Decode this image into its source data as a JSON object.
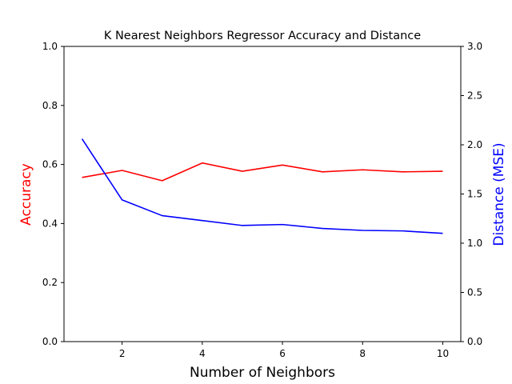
{
  "chart_data": {
    "type": "line",
    "title": "K Nearest Neighbors Regressor Accuracy and Distance",
    "xlabel": "Number of Neighbors",
    "xlim": [
      0.55,
      10.45
    ],
    "xticks": [
      "2",
      "4",
      "6",
      "8",
      "10"
    ],
    "x": [
      1,
      2,
      3,
      4,
      5,
      6,
      7,
      8,
      9,
      10
    ],
    "grid": false,
    "left_axis": {
      "label": "Accuracy",
      "color": "#ff0000",
      "ylim": [
        0.0,
        1.0
      ],
      "ticks": [
        "0.0",
        "0.2",
        "0.4",
        "0.6",
        "0.8",
        "1.0"
      ]
    },
    "right_axis": {
      "label": "Distance (MSE)",
      "color": "#0000ff",
      "ylim": [
        0.0,
        3.0
      ],
      "ticks": [
        "0.0",
        "0.5",
        "1.0",
        "1.5",
        "2.0",
        "2.5",
        "3.0"
      ]
    },
    "series": [
      {
        "axis": "left",
        "color": "#ff0000",
        "values": [
          0.556,
          0.58,
          0.545,
          0.605,
          0.577,
          0.598,
          0.575,
          0.582,
          0.575,
          0.577
        ]
      },
      {
        "axis": "right",
        "color": "#0000ff",
        "values": [
          2.06,
          1.44,
          1.28,
          1.23,
          1.18,
          1.19,
          1.15,
          1.13,
          1.125,
          1.1
        ]
      }
    ]
  }
}
